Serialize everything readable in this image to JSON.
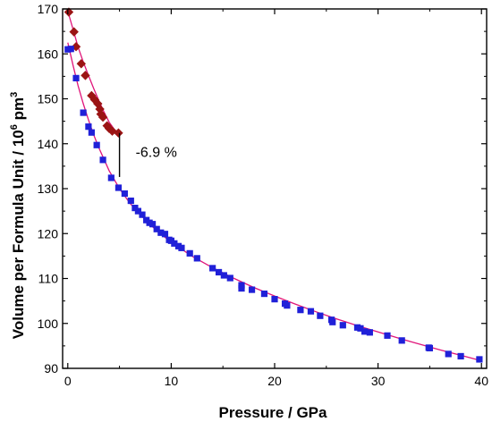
{
  "chart_data": {
    "type": "scatter",
    "xlabel": "Pressure / GPa",
    "ylabel_main": "Volume per Formula Unit / 10",
    "ylabel_exp": "6",
    "ylabel_unit": " pm",
    "ylabel_unit_exp": "3",
    "xlim": [
      -0.5,
      40.5
    ],
    "ylim": [
      90,
      170
    ],
    "x_ticks": [
      0,
      10,
      20,
      30,
      40
    ],
    "y_ticks": [
      90,
      100,
      110,
      120,
      130,
      140,
      150,
      160,
      170
    ],
    "grid": false,
    "annotation": {
      "text": "-6.9 %",
      "x": 5.0,
      "y_top": 142.4,
      "y_bottom": 132.6
    },
    "series": [
      {
        "marker": "diamond",
        "color": "#9b1414",
        "points": [
          [
            0.1,
            169.3
          ],
          [
            0.6,
            164.9
          ],
          [
            0.8,
            161.6
          ],
          [
            1.3,
            157.8
          ],
          [
            1.7,
            155.2
          ],
          [
            2.3,
            150.7
          ],
          [
            2.6,
            149.8
          ],
          [
            2.9,
            148.9
          ],
          [
            3.1,
            147.7
          ],
          [
            3.2,
            146.6
          ],
          [
            3.4,
            145.9
          ],
          [
            3.8,
            144.0
          ],
          [
            4.0,
            143.4
          ],
          [
            4.3,
            142.8
          ],
          [
            4.9,
            142.4
          ]
        ],
        "fit": [
          [
            0,
            169.5
          ],
          [
            0.5,
            165.5
          ],
          [
            1,
            161.5
          ],
          [
            1.5,
            158.2
          ],
          [
            2,
            155.2
          ],
          [
            2.5,
            152.3
          ],
          [
            3,
            149.6
          ],
          [
            3.5,
            147.1
          ],
          [
            4,
            144.8
          ],
          [
            4.5,
            143.2
          ],
          [
            4.9,
            142.4
          ]
        ]
      },
      {
        "marker": "square",
        "color": "#2020d8",
        "points": [
          [
            0.0,
            161.0
          ],
          [
            0.3,
            161.1
          ],
          [
            0.8,
            154.6
          ],
          [
            1.5,
            146.9
          ],
          [
            2.0,
            143.8
          ],
          [
            2.3,
            142.5
          ],
          [
            2.8,
            139.7
          ],
          [
            3.4,
            136.4
          ],
          [
            4.2,
            132.4
          ],
          [
            4.9,
            130.2
          ],
          [
            5.5,
            128.9
          ],
          [
            6.1,
            127.3
          ],
          [
            6.5,
            125.7
          ],
          [
            6.8,
            125.0
          ],
          [
            7.2,
            124.2
          ],
          [
            7.6,
            123.0
          ],
          [
            7.9,
            122.4
          ],
          [
            8.2,
            122.1
          ],
          [
            8.6,
            121.0
          ],
          [
            9.0,
            120.2
          ],
          [
            9.4,
            119.9
          ],
          [
            9.8,
            118.6
          ],
          [
            10.0,
            118.4
          ],
          [
            10.3,
            117.8
          ],
          [
            10.7,
            117.2
          ],
          [
            11.0,
            116.8
          ],
          [
            11.8,
            115.6
          ],
          [
            12.5,
            114.5
          ],
          [
            14.0,
            112.3
          ],
          [
            14.6,
            111.4
          ],
          [
            15.1,
            110.7
          ],
          [
            15.7,
            110.1
          ],
          [
            16.8,
            108.5
          ],
          [
            16.8,
            107.8
          ],
          [
            17.8,
            107.5
          ],
          [
            19.0,
            106.6
          ],
          [
            20.0,
            105.4
          ],
          [
            21.0,
            104.4
          ],
          [
            21.2,
            104.0
          ],
          [
            22.5,
            103.0
          ],
          [
            23.5,
            102.7
          ],
          [
            24.4,
            101.7
          ],
          [
            25.5,
            100.8
          ],
          [
            25.6,
            100.3
          ],
          [
            26.6,
            99.6
          ],
          [
            28.0,
            99.1
          ],
          [
            28.3,
            98.9
          ],
          [
            28.7,
            98.2
          ],
          [
            29.2,
            98.0
          ],
          [
            30.9,
            97.3
          ],
          [
            32.3,
            96.2
          ],
          [
            34.9,
            94.6
          ],
          [
            35.0,
            94.5
          ],
          [
            36.8,
            93.2
          ],
          [
            38.0,
            92.7
          ],
          [
            39.8,
            92.0
          ]
        ],
        "fit": [
          [
            0,
            162.5
          ],
          [
            0.5,
            157.5
          ],
          [
            1,
            152.9
          ],
          [
            1.5,
            148.9
          ],
          [
            2,
            145.3
          ],
          [
            2.5,
            142.0
          ],
          [
            3,
            139.1
          ],
          [
            4,
            134.0
          ],
          [
            5,
            130.0
          ],
          [
            6,
            126.8
          ],
          [
            7,
            124.2
          ],
          [
            8,
            121.9
          ],
          [
            9,
            119.9
          ],
          [
            10,
            118.1
          ],
          [
            12,
            115.0
          ],
          [
            14,
            112.4
          ],
          [
            16,
            110.1
          ],
          [
            18,
            108.0
          ],
          [
            20,
            106.1
          ],
          [
            22,
            104.3
          ],
          [
            24,
            102.6
          ],
          [
            26,
            101.0
          ],
          [
            28,
            99.5
          ],
          [
            30,
            98.1
          ],
          [
            32,
            96.7
          ],
          [
            34,
            95.4
          ],
          [
            36,
            94.1
          ],
          [
            38,
            92.9
          ],
          [
            40,
            91.7
          ]
        ]
      }
    ]
  }
}
